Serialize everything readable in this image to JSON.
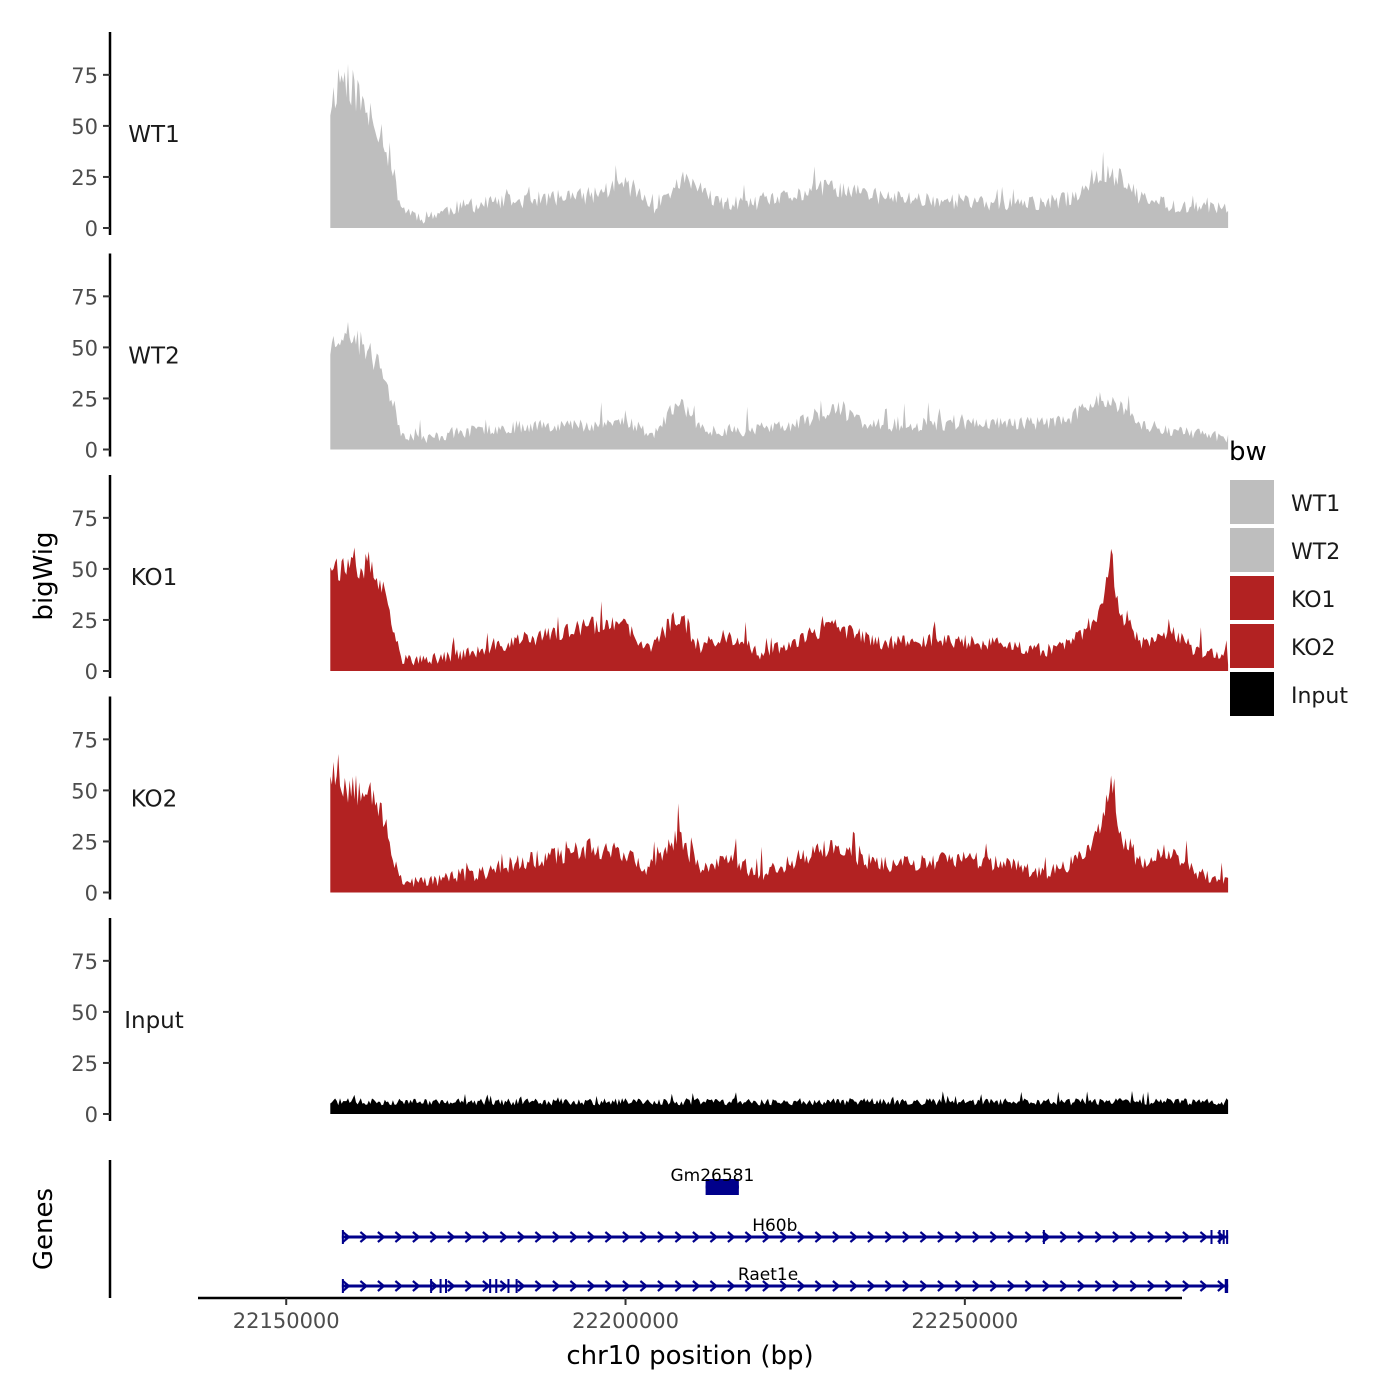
{
  "chart_data": {
    "type": "area",
    "y_axis_label": "bigWig",
    "x_axis_label": "chr10 position (bp)",
    "genes_axis_label": "Genes",
    "x_range": [
      22137000,
      22282000
    ],
    "data_range": [
      22156500,
      22288800
    ],
    "x_ticks": [
      {
        "value": 22150000,
        "label": "22150000"
      },
      {
        "value": 22200000,
        "label": "22200000"
      },
      {
        "value": 22250000,
        "label": "22250000"
      }
    ],
    "y_range": [
      0,
      95
    ],
    "y_ticks": [
      {
        "value": 0,
        "label": "0"
      },
      {
        "value": 25,
        "label": "25"
      },
      {
        "value": 50,
        "label": "50"
      },
      {
        "value": 75,
        "label": "75"
      }
    ],
    "legend": {
      "title": "bw",
      "position": "right",
      "entries": [
        {
          "label": "WT1",
          "color": "#bebebe"
        },
        {
          "label": "WT2",
          "color": "#bebebe"
        },
        {
          "label": "KO1",
          "color": "#b22222"
        },
        {
          "label": "KO2",
          "color": "#b22222"
        },
        {
          "label": "Input",
          "color": "#000000"
        }
      ]
    },
    "tracks": [
      {
        "name": "WT1",
        "color": "#bebebe",
        "seed": 11,
        "noise": 14,
        "knots": [
          [
            22156500,
            60
          ],
          [
            22158000,
            75
          ],
          [
            22160000,
            68
          ],
          [
            22162000,
            55
          ],
          [
            22164000,
            48
          ],
          [
            22165500,
            30
          ],
          [
            22167000,
            10
          ],
          [
            22170000,
            5
          ],
          [
            22175000,
            10
          ],
          [
            22180000,
            12
          ],
          [
            22187000,
            14
          ],
          [
            22195000,
            16
          ],
          [
            22200000,
            22
          ],
          [
            22204000,
            10
          ],
          [
            22209000,
            25
          ],
          [
            22213000,
            12
          ],
          [
            22220000,
            12
          ],
          [
            22230000,
            20
          ],
          [
            22238000,
            15
          ],
          [
            22245000,
            14
          ],
          [
            22252000,
            12
          ],
          [
            22262000,
            12
          ],
          [
            22266000,
            15
          ],
          [
            22270000,
            28
          ],
          [
            22273000,
            24
          ],
          [
            22276000,
            14
          ],
          [
            22281000,
            11
          ],
          [
            22288800,
            9
          ]
        ]
      },
      {
        "name": "WT2",
        "color": "#bebebe",
        "seed": 23,
        "noise": 12,
        "knots": [
          [
            22156500,
            50
          ],
          [
            22158000,
            58
          ],
          [
            22160000,
            55
          ],
          [
            22162000,
            48
          ],
          [
            22164000,
            40
          ],
          [
            22165500,
            25
          ],
          [
            22167000,
            8
          ],
          [
            22170000,
            5
          ],
          [
            22175000,
            8
          ],
          [
            22180000,
            10
          ],
          [
            22187000,
            12
          ],
          [
            22195000,
            12
          ],
          [
            22200000,
            14
          ],
          [
            22204000,
            7
          ],
          [
            22208000,
            24
          ],
          [
            22211000,
            10
          ],
          [
            22216000,
            9
          ],
          [
            22225000,
            12
          ],
          [
            22231000,
            20
          ],
          [
            22236000,
            12
          ],
          [
            22245000,
            12
          ],
          [
            22252000,
            13
          ],
          [
            22262000,
            13
          ],
          [
            22266000,
            16
          ],
          [
            22270000,
            26
          ],
          [
            22273000,
            20
          ],
          [
            22276000,
            12
          ],
          [
            22281000,
            9
          ],
          [
            22288800,
            6
          ]
        ]
      },
      {
        "name": "KO1",
        "color": "#b22222",
        "seed": 37,
        "noise": 13,
        "knots": [
          [
            22156500,
            55
          ],
          [
            22158000,
            50
          ],
          [
            22160000,
            48
          ],
          [
            22162000,
            52
          ],
          [
            22164000,
            42
          ],
          [
            22165500,
            22
          ],
          [
            22167000,
            6
          ],
          [
            22170000,
            5
          ],
          [
            22175000,
            8
          ],
          [
            22180000,
            10
          ],
          [
            22184000,
            15
          ],
          [
            22190000,
            18
          ],
          [
            22195000,
            22
          ],
          [
            22200000,
            22
          ],
          [
            22203000,
            10
          ],
          [
            22208000,
            28
          ],
          [
            22211000,
            10
          ],
          [
            22215000,
            18
          ],
          [
            22220000,
            8
          ],
          [
            22226000,
            16
          ],
          [
            22231000,
            22
          ],
          [
            22237000,
            14
          ],
          [
            22245000,
            15
          ],
          [
            22252000,
            14
          ],
          [
            22262000,
            10
          ],
          [
            22266000,
            14
          ],
          [
            22270000,
            30
          ],
          [
            22271500,
            55
          ],
          [
            22273000,
            28
          ],
          [
            22276000,
            14
          ],
          [
            22280000,
            20
          ],
          [
            22284000,
            10
          ],
          [
            22288800,
            6
          ]
        ]
      },
      {
        "name": "KO2",
        "color": "#b22222",
        "seed": 53,
        "noise": 15,
        "knots": [
          [
            22156500,
            62
          ],
          [
            22158000,
            55
          ],
          [
            22160000,
            50
          ],
          [
            22162000,
            56
          ],
          [
            22164000,
            40
          ],
          [
            22165500,
            20
          ],
          [
            22167000,
            6
          ],
          [
            22170000,
            5
          ],
          [
            22175000,
            8
          ],
          [
            22180000,
            10
          ],
          [
            22184000,
            15
          ],
          [
            22190000,
            18
          ],
          [
            22195000,
            22
          ],
          [
            22200000,
            20
          ],
          [
            22203000,
            10
          ],
          [
            22208000,
            28
          ],
          [
            22211000,
            10
          ],
          [
            22215000,
            18
          ],
          [
            22220000,
            8
          ],
          [
            22226000,
            18
          ],
          [
            22231000,
            22
          ],
          [
            22237000,
            14
          ],
          [
            22245000,
            15
          ],
          [
            22252000,
            16
          ],
          [
            22262000,
            10
          ],
          [
            22266000,
            14
          ],
          [
            22270000,
            30
          ],
          [
            22271500,
            60
          ],
          [
            22273000,
            28
          ],
          [
            22276000,
            14
          ],
          [
            22280000,
            20
          ],
          [
            22284000,
            10
          ],
          [
            22288800,
            6
          ]
        ]
      },
      {
        "name": "Input",
        "color": "#000000",
        "seed": 71,
        "noise": 8,
        "knots": [
          [
            22156500,
            6
          ],
          [
            22288800,
            6
          ]
        ]
      }
    ],
    "genes": [
      {
        "name": "Gm26581",
        "start": 22211800,
        "end": 22216700,
        "strand": "+",
        "row": 0,
        "label_at": 22212800,
        "exons": [
          [
            22211800,
            22216700
          ]
        ]
      },
      {
        "name": "H60b",
        "start": 22158200,
        "end": 22288800,
        "strand": "+",
        "row": 1,
        "label_at": 22222000,
        "exons": [
          [
            22158200,
            22158400
          ],
          [
            22261500,
            22261700
          ],
          [
            22286200,
            22286400
          ],
          [
            22287400,
            22287600
          ],
          [
            22288000,
            22288200
          ],
          [
            22288500,
            22288800
          ]
        ]
      },
      {
        "name": "Raet1e",
        "start": 22158200,
        "end": 22288800,
        "strand": "+",
        "row": 2,
        "label_at": 22221000,
        "exons": [
          [
            22158200,
            22158400
          ],
          [
            22171200,
            22171400
          ],
          [
            22172600,
            22172800
          ],
          [
            22173400,
            22173700
          ],
          [
            22179900,
            22180200
          ],
          [
            22180800,
            22181100
          ],
          [
            22182600,
            22182800
          ],
          [
            22183800,
            22184100
          ],
          [
            22288300,
            22288800
          ]
        ]
      }
    ]
  }
}
